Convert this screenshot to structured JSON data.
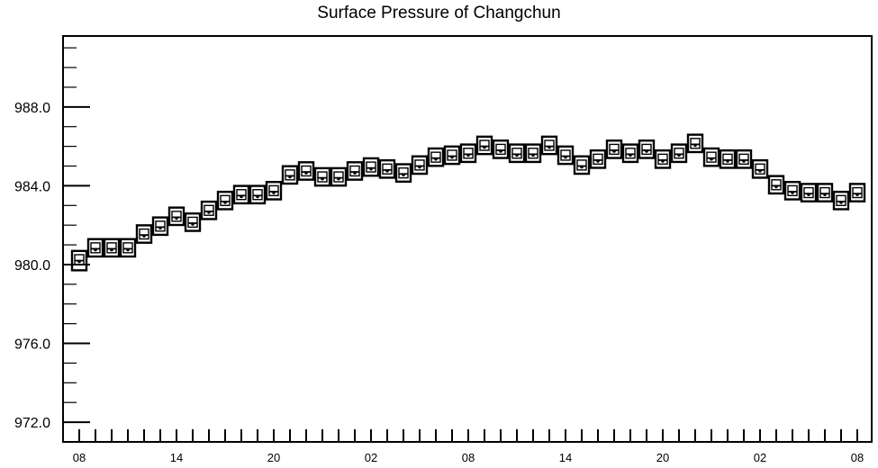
{
  "chart_data": {
    "type": "boxplot",
    "title": "Surface Pressure of Changchun",
    "xlabel": "",
    "ylabel": "",
    "ylim": [
      971.0,
      991.6
    ],
    "y_ticks": [
      "972.0",
      "976.0",
      "980.0",
      "984.0",
      "988.0"
    ],
    "y_tick_values": [
      972.0,
      976.0,
      980.0,
      984.0,
      988.0
    ],
    "x_tick_labels": [
      "08",
      "14",
      "20",
      "02",
      "08",
      "14",
      "20",
      "02",
      "08"
    ],
    "x_tick_label_index": [
      0,
      6,
      12,
      18,
      24,
      30,
      36,
      42,
      48
    ],
    "grid": false,
    "series": [
      {
        "low": [
          979.8,
          980.5,
          980.5,
          980.5,
          981.2,
          981.6,
          982.1,
          981.8,
          982.4,
          982.9,
          983.2,
          983.2,
          983.4,
          984.2,
          984.4,
          984.1,
          984.1,
          984.4,
          984.6,
          984.5,
          984.3,
          984.7,
          985.1,
          985.2,
          985.3,
          985.7,
          985.5,
          985.3,
          985.3,
          985.7,
          985.2,
          984.7,
          985.0,
          985.5,
          985.3,
          985.5,
          985.0,
          985.3,
          985.8,
          985.1,
          985.0,
          985.0,
          984.5,
          983.7,
          983.4,
          983.3,
          983.3,
          982.9,
          983.3
        ],
        "q1": [
          980.0,
          980.6,
          980.6,
          980.6,
          981.3,
          981.7,
          982.2,
          981.9,
          982.5,
          983.0,
          983.3,
          983.3,
          983.5,
          984.3,
          984.5,
          984.2,
          984.2,
          984.5,
          984.7,
          984.6,
          984.4,
          984.8,
          985.2,
          985.3,
          985.4,
          985.8,
          985.6,
          985.4,
          985.4,
          985.8,
          985.3,
          984.8,
          985.1,
          985.6,
          985.4,
          985.6,
          985.1,
          985.4,
          985.9,
          985.2,
          985.1,
          985.1,
          984.6,
          983.8,
          983.5,
          983.4,
          983.4,
          983.0,
          983.4
        ],
        "median": [
          980.2,
          980.8,
          980.8,
          980.8,
          981.5,
          981.9,
          982.4,
          982.1,
          982.7,
          983.2,
          983.5,
          983.5,
          983.7,
          984.5,
          984.7,
          984.4,
          984.4,
          984.7,
          984.9,
          984.8,
          984.6,
          985.0,
          985.4,
          985.5,
          985.6,
          986.0,
          985.8,
          985.6,
          985.6,
          986.0,
          985.5,
          985.0,
          985.3,
          985.8,
          985.6,
          985.8,
          985.3,
          985.6,
          986.1,
          985.4,
          985.3,
          985.3,
          984.8,
          984.0,
          983.7,
          983.6,
          983.6,
          983.2,
          983.6
        ],
        "q3": [
          980.5,
          981.1,
          981.1,
          981.1,
          981.8,
          982.2,
          982.7,
          982.4,
          983.0,
          983.5,
          983.8,
          983.8,
          984.0,
          984.8,
          985.0,
          984.7,
          984.7,
          985.0,
          985.2,
          985.1,
          984.9,
          985.3,
          985.7,
          985.8,
          985.9,
          986.3,
          986.1,
          985.9,
          985.9,
          986.3,
          985.8,
          985.3,
          985.6,
          986.1,
          985.9,
          986.1,
          985.6,
          985.9,
          986.4,
          985.7,
          985.6,
          985.6,
          985.1,
          984.3,
          984.0,
          983.9,
          983.9,
          983.5,
          983.9
        ],
        "high": [
          980.6,
          981.2,
          981.2,
          981.2,
          981.9,
          982.3,
          982.8,
          982.5,
          983.1,
          983.6,
          983.9,
          983.9,
          984.1,
          984.9,
          985.1,
          984.8,
          984.8,
          985.1,
          985.3,
          985.2,
          985.0,
          985.4,
          985.8,
          985.9,
          986.0,
          986.4,
          986.2,
          986.0,
          986.0,
          986.4,
          985.9,
          985.4,
          985.7,
          986.2,
          986.0,
          986.2,
          985.7,
          986.0,
          986.5,
          985.8,
          985.7,
          985.7,
          985.2,
          984.4,
          984.1,
          984.0,
          984.0,
          983.6,
          984.0
        ]
      }
    ]
  }
}
